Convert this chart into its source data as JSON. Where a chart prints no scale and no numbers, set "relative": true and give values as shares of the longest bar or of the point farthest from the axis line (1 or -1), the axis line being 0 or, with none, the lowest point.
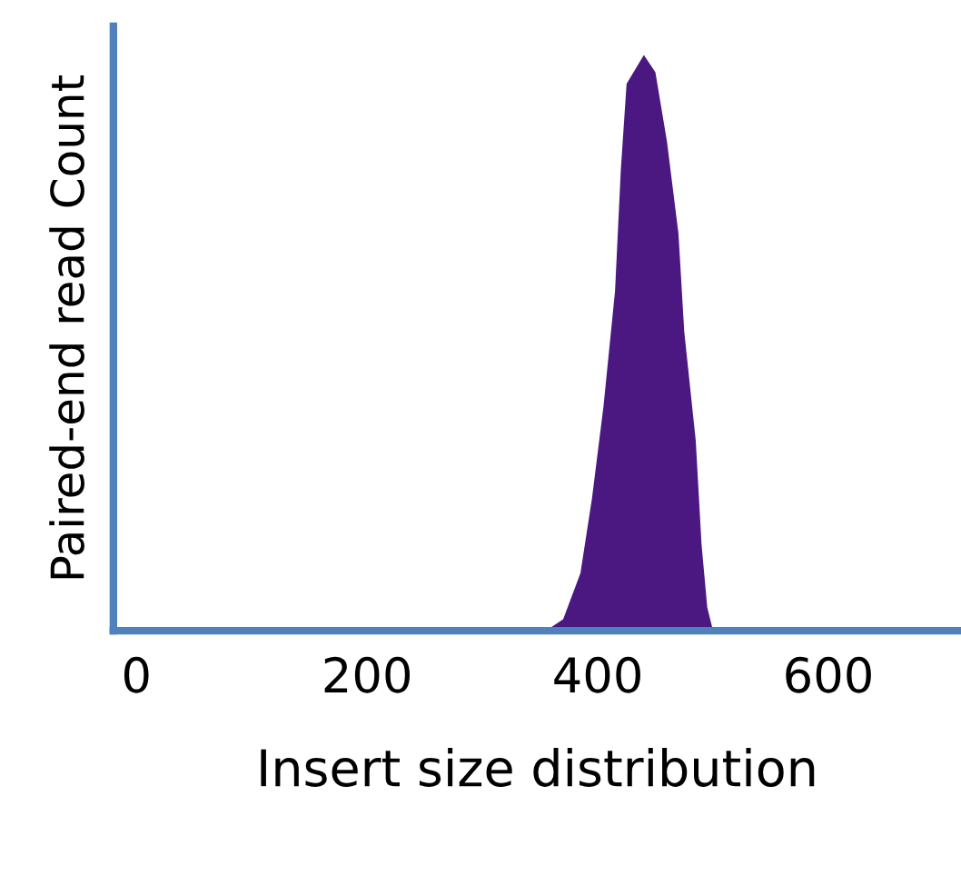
{
  "chart_data": {
    "type": "area",
    "relative": true,
    "xlabel": "Insert size distribution",
    "ylabel": "Paired-end read Count",
    "x": [
      300,
      355,
      370,
      385,
      395,
      405,
      415,
      420,
      425,
      440,
      450,
      460,
      470,
      475,
      485,
      490,
      495,
      500
    ],
    "series": [
      {
        "color": "#4b1882",
        "values": [
          0,
          0,
          0.02,
          0.1,
          0.23,
          0.39,
          0.59,
          0.8,
          0.95,
          1.0,
          0.97,
          0.85,
          0.69,
          0.52,
          0.33,
          0.15,
          0.04,
          0
        ]
      }
    ],
    "xlim": [
      -20,
      715
    ],
    "xticks": [
      0,
      200,
      400,
      600
    ],
    "grid": false,
    "legend": false
  }
}
